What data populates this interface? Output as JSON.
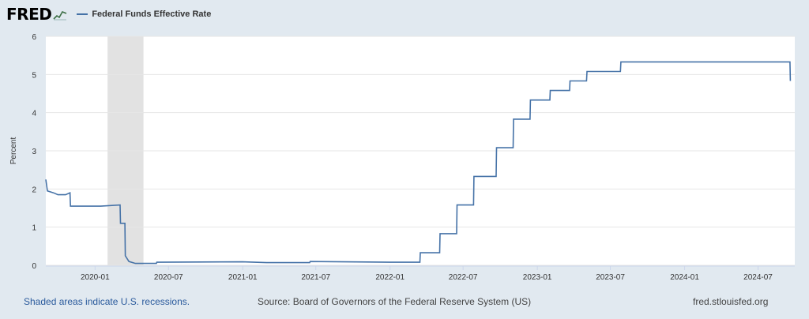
{
  "header": {
    "logo_text": "FRED",
    "logo_icon": "sparkline-logo-icon"
  },
  "chart_data": {
    "type": "line",
    "title": "",
    "xlabel": "",
    "ylabel": "Percent",
    "ylim": [
      0,
      6
    ],
    "yticks": [
      0,
      1,
      2,
      3,
      4,
      5,
      6
    ],
    "xlim": [
      "2019-09-01",
      "2024-09-30"
    ],
    "xticks": [
      "2020-01",
      "2020-07",
      "2021-01",
      "2021-07",
      "2022-01",
      "2022-07",
      "2023-01",
      "2023-07",
      "2024-01",
      "2024-07"
    ],
    "grid": true,
    "legend_position": "top-left",
    "recessions": [
      {
        "start": "2020-02-01",
        "end": "2020-04-30"
      }
    ],
    "series": [
      {
        "name": "Federal Funds Effective Rate",
        "color": "#4572a7",
        "points": [
          [
            "2019-09-01",
            2.25
          ],
          [
            "2019-09-05",
            1.95
          ],
          [
            "2019-09-20",
            1.9
          ],
          [
            "2019-10-01",
            1.85
          ],
          [
            "2019-10-20",
            1.85
          ],
          [
            "2019-10-31",
            1.9
          ],
          [
            "2019-11-01",
            1.55
          ],
          [
            "2019-12-20",
            1.55
          ],
          [
            "2020-01-15",
            1.55
          ],
          [
            "2020-03-03",
            1.58
          ],
          [
            "2020-03-04",
            1.1
          ],
          [
            "2020-03-15",
            1.1
          ],
          [
            "2020-03-16",
            0.25
          ],
          [
            "2020-03-25",
            0.1
          ],
          [
            "2020-04-10",
            0.05
          ],
          [
            "2020-06-01",
            0.05
          ],
          [
            "2020-06-02",
            0.08
          ],
          [
            "2020-12-31",
            0.09
          ],
          [
            "2021-03-01",
            0.07
          ],
          [
            "2021-06-16",
            0.07
          ],
          [
            "2021-06-17",
            0.1
          ],
          [
            "2021-12-31",
            0.08
          ],
          [
            "2022-03-16",
            0.08
          ],
          [
            "2022-03-17",
            0.33
          ],
          [
            "2022-05-04",
            0.33
          ],
          [
            "2022-05-05",
            0.83
          ],
          [
            "2022-06-15",
            0.83
          ],
          [
            "2022-06-16",
            1.58
          ],
          [
            "2022-07-27",
            1.58
          ],
          [
            "2022-07-28",
            2.33
          ],
          [
            "2022-09-21",
            2.33
          ],
          [
            "2022-09-22",
            3.08
          ],
          [
            "2022-11-02",
            3.08
          ],
          [
            "2022-11-03",
            3.83
          ],
          [
            "2022-12-14",
            3.83
          ],
          [
            "2022-12-15",
            4.33
          ],
          [
            "2023-02-01",
            4.33
          ],
          [
            "2023-02-02",
            4.58
          ],
          [
            "2023-03-22",
            4.58
          ],
          [
            "2023-03-23",
            4.83
          ],
          [
            "2023-05-03",
            4.83
          ],
          [
            "2023-05-04",
            5.08
          ],
          [
            "2023-07-26",
            5.08
          ],
          [
            "2023-07-27",
            5.33
          ],
          [
            "2024-09-18",
            5.33
          ],
          [
            "2024-09-19",
            4.83
          ]
        ]
      }
    ]
  },
  "footer": {
    "recession_note": "Shaded areas indicate U.S. recessions.",
    "source": "Source: Board of Governors of the Federal Reserve System (US)",
    "site": "fred.stlouisfed.org"
  }
}
